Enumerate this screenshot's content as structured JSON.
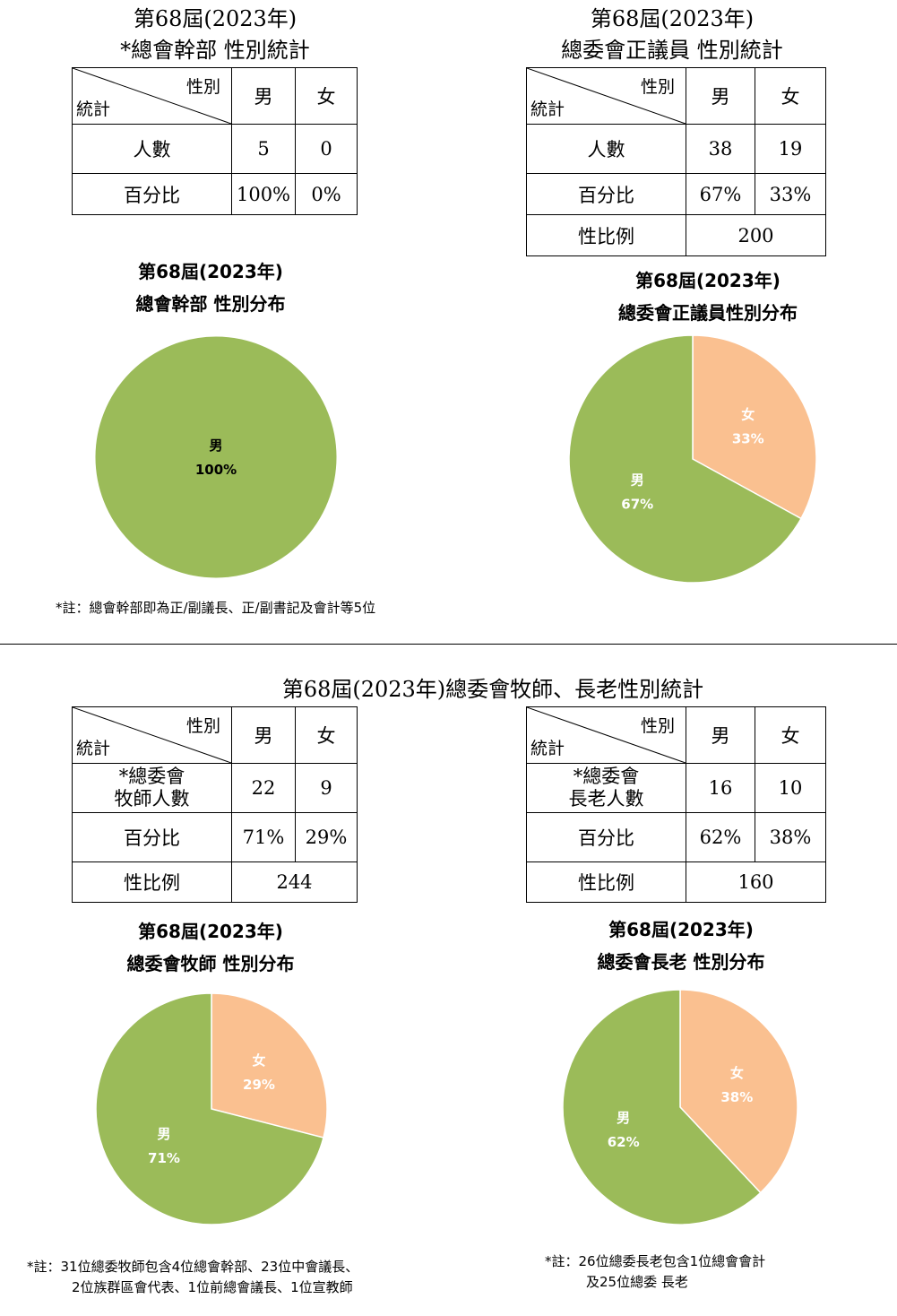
{
  "sections": [
    {
      "title1": "第68屆(2023年)",
      "title2": "*總會幹部  性別統計",
      "header": {
        "gender": "性別",
        "stat": "統計",
        "male": "男",
        "female": "女"
      },
      "rows": [
        {
          "label": "人數",
          "male": "5",
          "female": "0"
        },
        {
          "label": "百分比",
          "male": "100%",
          "female": "0%"
        }
      ],
      "chart_title1": "第68屆(2023年)",
      "chart_title2": "總會幹部 性別分布",
      "note1": "*註：總會幹部即為正/副議長、正/副書記及會計等5位"
    },
    {
      "title1": "第68屆(2023年)",
      "title2": "總委會正議員  性別統計",
      "header": {
        "gender": "性別",
        "stat": "統計",
        "male": "男",
        "female": "女"
      },
      "rows": [
        {
          "label": "人數",
          "male": "38",
          "female": "19"
        },
        {
          "label": "百分比",
          "male": "67%",
          "female": "33%"
        }
      ],
      "ratio_label": "性比例",
      "ratio_value": "200",
      "chart_title1": "第68屆(2023年)",
      "chart_title2": "總委會正議員性別分布"
    },
    {
      "header": {
        "gender": "性別",
        "stat": "統計",
        "male": "男",
        "female": "女"
      },
      "rows": [
        {
          "label1": "*總委會",
          "label2": "牧師人數",
          "male": "22",
          "female": "9"
        },
        {
          "label": "百分比",
          "male": "71%",
          "female": "29%"
        }
      ],
      "ratio_label": "性比例",
      "ratio_value": "244",
      "chart_title1": "第68屆(2023年)",
      "chart_title2": "總委會牧師 性別分布",
      "note1": "*註：31位總委牧師包含4位總會幹部、23位中會議長、",
      "note2": "2位族群區會代表、1位前總會議長、1位宣教師"
    },
    {
      "header": {
        "gender": "性別",
        "stat": "統計",
        "male": "男",
        "female": "女"
      },
      "rows": [
        {
          "label1": "*總委會",
          "label2": "長老人數",
          "male": "16",
          "female": "10"
        },
        {
          "label": "百分比",
          "male": "62%",
          "female": "38%"
        }
      ],
      "ratio_label": "性比例",
      "ratio_value": "160",
      "chart_title1": "第68屆(2023年)",
      "chart_title2": "總委會長老 性別分布",
      "note1": "*註：26位總委長老包含1位總會會計",
      "note2": "及25位總委 長老"
    }
  ],
  "bottom_title": "第68屆(2023年)總委會牧師、長老性別統計",
  "colors": {
    "male": "#9BBB59",
    "female": "#FAC090"
  },
  "chart_data": [
    {
      "type": "pie",
      "title": "第68屆(2023年) 總會幹部 性別分布",
      "categories": [
        "男"
      ],
      "values": [
        100
      ],
      "labels": [
        "100%"
      ]
    },
    {
      "type": "pie",
      "title": "第68屆(2023年) 總委會正議員性別分布",
      "categories": [
        "女",
        "男"
      ],
      "values": [
        33,
        67
      ],
      "labels": [
        "33%",
        "67%"
      ]
    },
    {
      "type": "pie",
      "title": "第68屆(2023年) 總委會牧師 性別分布",
      "categories": [
        "女",
        "男"
      ],
      "values": [
        29,
        71
      ],
      "labels": [
        "29%",
        "71%"
      ]
    },
    {
      "type": "pie",
      "title": "第68屆(2023年) 總委會長老 性別分布",
      "categories": [
        "女",
        "男"
      ],
      "values": [
        38,
        62
      ],
      "labels": [
        "38%",
        "62%"
      ]
    }
  ]
}
